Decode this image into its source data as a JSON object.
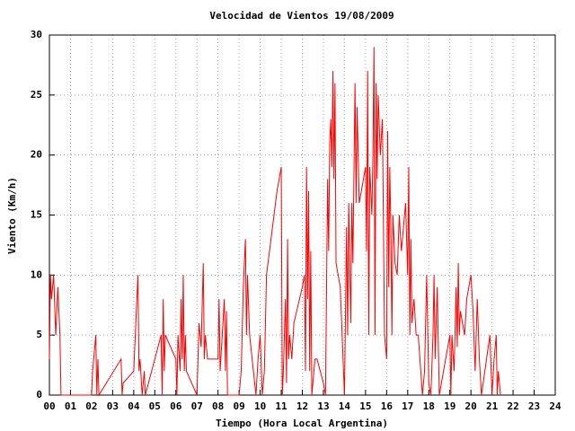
{
  "chart_data": {
    "type": "line",
    "title": "Velocidad de Vientos 19/08/2009",
    "xlabel": "Tiempo (Hora Local Argentina)",
    "ylabel": "Viento (Km/h)",
    "color": "#ff0000",
    "grid": true,
    "xlim": [
      0,
      24
    ],
    "ylim": [
      0,
      30
    ],
    "yticks": [
      0,
      5,
      10,
      15,
      20,
      25,
      30
    ],
    "xticks": [
      {
        "value": 0,
        "label": "00"
      },
      {
        "value": 1,
        "label": "01"
      },
      {
        "value": 2,
        "label": "02"
      },
      {
        "value": 3,
        "label": "03"
      },
      {
        "value": 4,
        "label": "04"
      },
      {
        "value": 5,
        "label": "05"
      },
      {
        "value": 6,
        "label": "06"
      },
      {
        "value": 7,
        "label": "07"
      },
      {
        "value": 8,
        "label": "08"
      },
      {
        "value": 9,
        "label": "09"
      },
      {
        "value": 10,
        "label": "10"
      },
      {
        "value": 11,
        "label": "11"
      },
      {
        "value": 12,
        "label": "12"
      },
      {
        "value": 13,
        "label": "13"
      },
      {
        "value": 14,
        "label": "14"
      },
      {
        "value": 15,
        "label": "15"
      },
      {
        "value": 16,
        "label": "16"
      },
      {
        "value": 17,
        "label": "17"
      },
      {
        "value": 18,
        "label": "18"
      },
      {
        "value": 19,
        "label": "19"
      },
      {
        "value": 20,
        "label": "20"
      },
      {
        "value": 21,
        "label": "21"
      },
      {
        "value": 22,
        "label": "22"
      },
      {
        "value": 23,
        "label": "23"
      },
      {
        "value": 24,
        "label": "24"
      }
    ],
    "x": [
      0.0,
      0.05,
      0.1,
      0.2,
      0.3,
      0.4,
      0.5,
      0.55,
      2.0,
      2.05,
      2.2,
      2.25,
      2.3,
      2.35,
      3.4,
      3.45,
      3.5,
      4.0,
      4.1,
      4.2,
      4.25,
      4.3,
      4.4,
      4.5,
      4.55,
      5.3,
      5.35,
      5.4,
      5.45,
      5.5,
      6.0,
      6.05,
      6.1,
      6.2,
      6.25,
      6.3,
      6.35,
      6.4,
      6.45,
      6.5,
      7.0,
      7.1,
      7.2,
      7.3,
      7.35,
      7.4,
      7.5,
      7.6,
      8.0,
      8.05,
      8.1,
      8.3,
      8.35,
      8.4,
      8.45,
      9.0,
      9.1,
      9.2,
      9.3,
      9.35,
      9.4,
      9.5,
      9.8,
      9.9,
      10.0,
      10.1,
      10.2,
      10.3,
      10.8,
      11.0,
      11.05,
      11.1,
      11.2,
      11.25,
      11.3,
      11.35,
      11.4,
      11.5,
      11.6,
      12.0,
      12.1,
      12.15,
      12.2,
      12.25,
      12.3,
      12.35,
      12.4,
      12.45,
      12.6,
      12.7,
      13.0,
      13.1,
      13.2,
      13.25,
      13.3,
      13.35,
      13.4,
      13.45,
      13.5,
      13.55,
      13.6,
      13.8,
      14.0,
      14.1,
      14.15,
      14.2,
      14.3,
      14.35,
      14.4,
      14.5,
      14.55,
      14.6,
      14.7,
      14.9,
      15.0,
      15.05,
      15.1,
      15.15,
      15.2,
      15.3,
      15.35,
      15.4,
      15.45,
      15.5,
      15.55,
      15.6,
      15.7,
      15.8,
      15.9,
      16.0,
      16.05,
      16.1,
      16.15,
      16.2,
      16.25,
      16.3,
      16.4,
      16.5,
      16.6,
      16.7,
      16.8,
      16.9,
      17.0,
      17.05,
      17.1,
      17.15,
      17.2,
      17.3,
      17.4,
      17.5,
      17.7,
      17.8,
      17.9,
      18.0,
      18.1,
      18.2,
      18.25,
      18.3,
      18.4,
      18.5,
      18.8,
      19.0,
      19.05,
      19.1,
      19.2,
      19.3,
      19.35,
      19.4,
      19.45,
      19.5,
      19.7,
      19.8,
      20.0,
      20.1,
      20.2,
      20.3,
      20.4,
      20.5,
      20.9,
      21.0,
      21.1,
      21.2,
      21.25,
      21.3,
      21.4
    ],
    "values": [
      3,
      10,
      8,
      10,
      5,
      9,
      5,
      0,
      0,
      2,
      5,
      0,
      3,
      0,
      3,
      0,
      1,
      2,
      6,
      10,
      2,
      3,
      0,
      2,
      0,
      5,
      0,
      8,
      2,
      5,
      3,
      0,
      5,
      2,
      8,
      3,
      10,
      2,
      5,
      2,
      0,
      6,
      4,
      11,
      3,
      5,
      3,
      3,
      3,
      8,
      2,
      8,
      2,
      7,
      0,
      0,
      2,
      9,
      13,
      5,
      10,
      5,
      0,
      3,
      5,
      0,
      2,
      10,
      17,
      19,
      0,
      2,
      8,
      1,
      13,
      3,
      5,
      3,
      6,
      9,
      10,
      2,
      19,
      8,
      17,
      2,
      12,
      0,
      3,
      3,
      1,
      0,
      18,
      12,
      21,
      23,
      19,
      27,
      18,
      26,
      11,
      9,
      0,
      14,
      5,
      16,
      6,
      16,
      11,
      26,
      16,
      24,
      16,
      18,
      19,
      12,
      27,
      5,
      19,
      15,
      20,
      29,
      5,
      26,
      18,
      25,
      20,
      23,
      5,
      3,
      22,
      9,
      19,
      14,
      5,
      15,
      11,
      10,
      15,
      12,
      14,
      16,
      10,
      19,
      5,
      13,
      6,
      8,
      5,
      5,
      0,
      2,
      10,
      1,
      0,
      5,
      10,
      3,
      9,
      0,
      3,
      5,
      0,
      5,
      2,
      9,
      4,
      11,
      5,
      7,
      5,
      8,
      10,
      7,
      2,
      8,
      3,
      0,
      5,
      0,
      3,
      5,
      0,
      2,
      0
    ]
  }
}
